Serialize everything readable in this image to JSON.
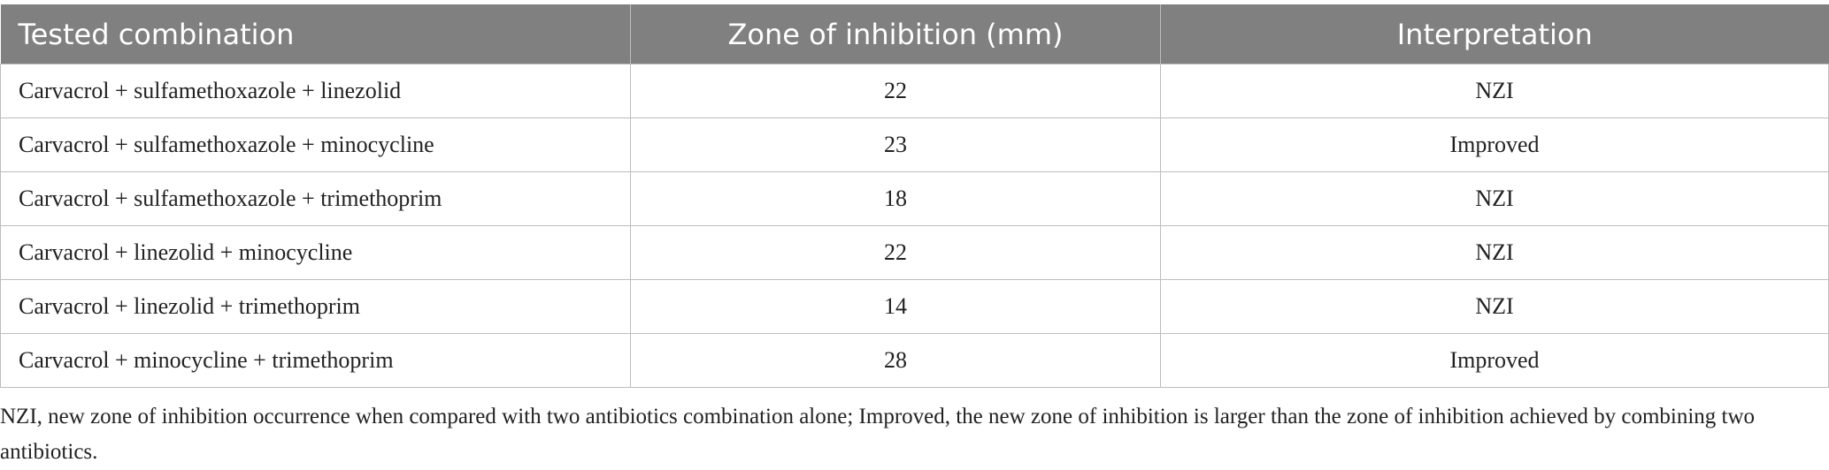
{
  "table": {
    "header": [
      "Tested combination",
      "Zone of inhibition (mm)",
      "Interpretation"
    ],
    "rows": [
      [
        "Carvacrol + sulfamethoxazole + linezolid",
        22,
        "NZI"
      ],
      [
        "Carvacrol + sulfamethoxazole + minocycline",
        23,
        "Improved"
      ],
      [
        "Carvacrol + sulfamethoxazole + trimethoprim",
        18,
        "NZI"
      ],
      [
        "Carvacrol + linezolid + minocycline",
        22,
        "NZI"
      ],
      [
        "Carvacrol + linezolid + trimethoprim",
        14,
        "NZI"
      ],
      [
        "Carvacrol + minocycline + trimethoprim",
        28,
        "Improved"
      ]
    ]
  },
  "footnote": "NZI, new zone of inhibition occurrence when compared with two antibiotics combination alone; Improved, the new zone of inhibition is larger than the zone of inhibition achieved by combining two antibiotics."
}
